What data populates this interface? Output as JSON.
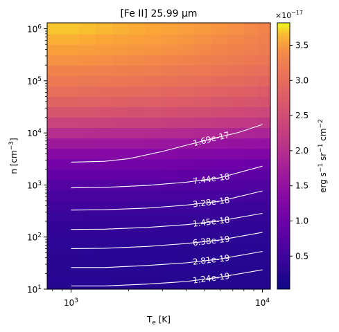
{
  "chart_data": {
    "type": "heatmap",
    "title": "[Fe II] 25.99 μm",
    "xlabel": "T_e [K]",
    "ylabel": "n [cm^-3]",
    "x_scale": "log",
    "y_scale": "log",
    "xlim": [
      750,
      11000
    ],
    "ylim": [
      10,
      1300000
    ],
    "x_ticks": [
      {
        "value": 1000,
        "base": "10",
        "exp": "3"
      },
      {
        "value": 10000,
        "base": "10",
        "exp": "4"
      }
    ],
    "y_ticks": [
      {
        "value": 10,
        "base": "10",
        "exp": "1"
      },
      {
        "value": 100,
        "base": "10",
        "exp": "2"
      },
      {
        "value": 1000,
        "base": "10",
        "exp": "3"
      },
      {
        "value": 10000,
        "base": "10",
        "exp": "4"
      },
      {
        "value": 100000,
        "base": "10",
        "exp": "5"
      },
      {
        "value": 1000000,
        "base": "10",
        "exp": "6"
      }
    ],
    "grid": false,
    "colormap": "plasma",
    "x": [
      1000,
      1200,
      1500,
      1800,
      2200,
      2700,
      3300,
      4000,
      4900,
      6000,
      7300,
      8800,
      10000
    ],
    "y": [
      10,
      16,
      25,
      40,
      63,
      100,
      160,
      250,
      400,
      630,
      1000,
      1600,
      2500,
      4000,
      6300,
      10000,
      16000,
      25000,
      40000,
      63000,
      100000,
      160000,
      250000,
      400000,
      630000,
      1000000
    ],
    "z_row_profile": [
      0.25,
      0.26,
      0.27,
      0.29,
      0.31,
      0.34,
      0.38,
      0.43,
      0.5,
      0.6,
      0.74,
      0.9,
      1.1,
      1.35,
      1.65,
      2.0,
      2.35,
      2.62,
      2.85,
      3.02,
      3.18,
      3.32,
      3.45,
      3.55,
      3.62,
      3.68
    ],
    "z_col_factor": [
      1.0,
      0.995,
      0.99,
      0.985,
      0.98,
      0.975,
      0.968,
      0.96,
      0.95,
      0.94,
      0.93,
      0.92,
      0.91
    ],
    "z_unit": "×10⁻¹⁷ erg s⁻¹ sr⁻¹ cm⁻²",
    "colorbar": {
      "label": "erg s^-1 sr^-1 cm^-2",
      "multiplier": "×10^-17",
      "range": [
        0.03,
        3.82
      ],
      "ticks": [
        0.5,
        1.0,
        1.5,
        2.0,
        2.5,
        3.0,
        3.5
      ],
      "tick_labels": [
        "0.5",
        "1.0",
        "1.5",
        "2.0",
        "2.5",
        "3.0",
        "3.5"
      ]
    },
    "contours": [
      {
        "label": "1.24e-19",
        "x": [
          1000,
          1500,
          2500,
          4000,
          6000,
          10000
        ],
        "y": [
          11.5,
          11.5,
          12.5,
          14,
          17,
          23.5
        ]
      },
      {
        "label": "2.81e-19",
        "x": [
          1000,
          1500,
          2500,
          4000,
          6000,
          10000
        ],
        "y": [
          26,
          26,
          28.5,
          32,
          38,
          53
        ]
      },
      {
        "label": "6.38e-19",
        "x": [
          1000,
          1500,
          2500,
          4000,
          6000,
          10000
        ],
        "y": [
          60,
          61,
          66,
          75,
          88,
          123
        ]
      },
      {
        "label": "1.45e-18",
        "x": [
          1000,
          1500,
          2500,
          4000,
          6000,
          10000
        ],
        "y": [
          140,
          142,
          153,
          173,
          205,
          285
        ]
      },
      {
        "label": "3.28e-18",
        "x": [
          1000,
          1500,
          2500,
          4000,
          6000,
          10000
        ],
        "y": [
          330,
          335,
          360,
          410,
          490,
          770
        ]
      },
      {
        "label": "7.44e-18",
        "x": [
          1000,
          1500,
          2500,
          4000,
          6000,
          10000
        ],
        "y": [
          880,
          900,
          980,
          1130,
          1380,
          2300
        ]
      },
      {
        "label": "1.69e-17",
        "x": [
          1000,
          1500,
          2000,
          3000,
          4000,
          6000,
          7500,
          10000
        ],
        "y": [
          2750,
          2850,
          3200,
          4400,
          5800,
          8400,
          10200,
          14500
        ]
      }
    ]
  }
}
